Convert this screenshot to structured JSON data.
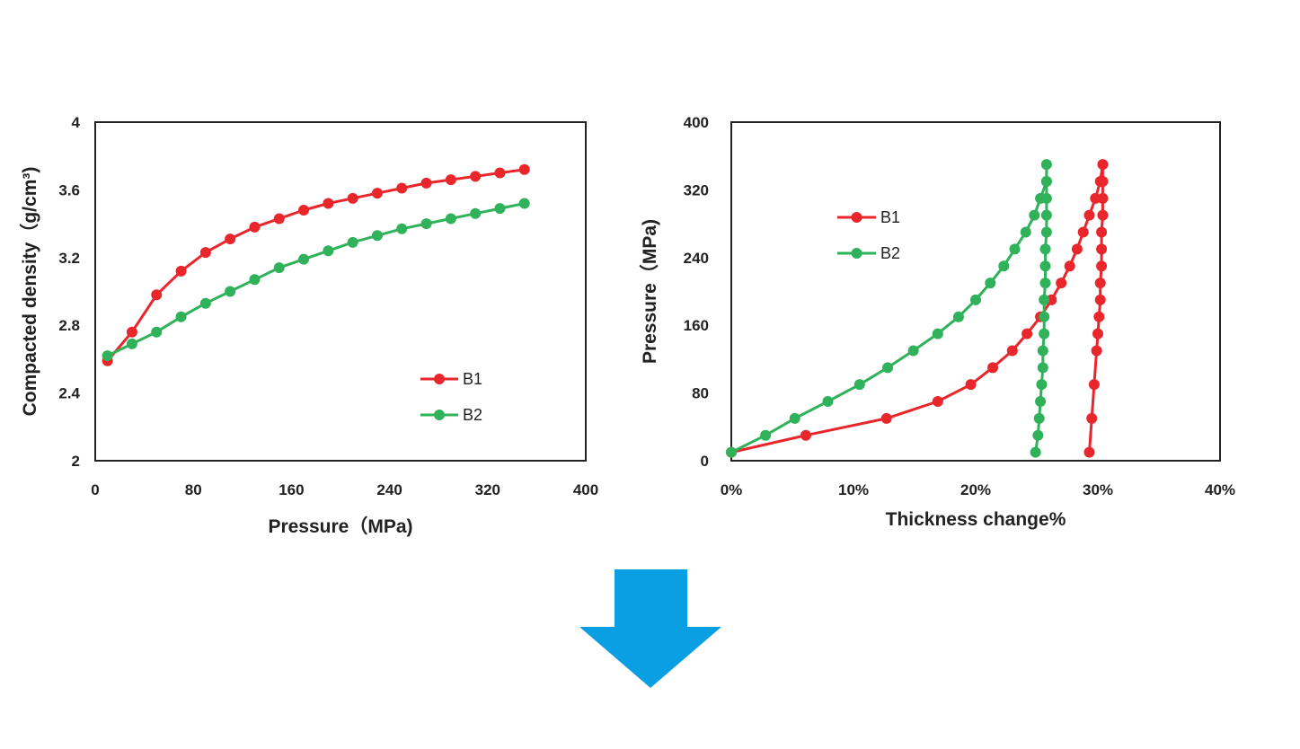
{
  "colors": {
    "B1": "#e8262b",
    "B2": "#2fb25a",
    "arrow": "#0a9fe3",
    "axis": "#222222"
  },
  "arrow": {
    "icon": "arrow-down-icon",
    "direction": "down"
  },
  "chart_data": [
    {
      "type": "line",
      "xlabel": "Pressure（MPa)",
      "ylabel": "Compacted density（g/cm³)",
      "xlim": [
        0,
        400
      ],
      "ylim": [
        2,
        4
      ],
      "x_tick_labels": [
        "0",
        "80",
        "160",
        "240",
        "320",
        "400"
      ],
      "y_tick_labels": [
        "2",
        "2.4",
        "2.8",
        "3.2",
        "3.6",
        "4"
      ],
      "grid": false,
      "legend_position": "lower-right",
      "series": [
        {
          "name": "B1",
          "x": [
            10,
            30,
            50,
            70,
            90,
            110,
            130,
            150,
            170,
            190,
            210,
            230,
            250,
            270,
            290,
            310,
            330,
            350
          ],
          "y": [
            2.59,
            2.76,
            2.98,
            3.12,
            3.23,
            3.31,
            3.38,
            3.43,
            3.48,
            3.52,
            3.55,
            3.58,
            3.61,
            3.64,
            3.66,
            3.68,
            3.7,
            3.72
          ]
        },
        {
          "name": "B2",
          "x": [
            10,
            30,
            50,
            70,
            90,
            110,
            130,
            150,
            170,
            190,
            210,
            230,
            250,
            270,
            290,
            310,
            330,
            350
          ],
          "y": [
            2.62,
            2.69,
            2.76,
            2.85,
            2.93,
            3.0,
            3.07,
            3.14,
            3.19,
            3.24,
            3.29,
            3.33,
            3.37,
            3.4,
            3.43,
            3.46,
            3.49,
            3.52
          ]
        }
      ]
    },
    {
      "type": "line",
      "xlabel": "Thickness change%",
      "ylabel": "Pressure（MPa)",
      "xlim": [
        0,
        40
      ],
      "ylim": [
        0,
        400
      ],
      "x_tick_labels": [
        "0%",
        "10%",
        "20%",
        "30%",
        "40%"
      ],
      "y_tick_labels": [
        "0",
        "80",
        "160",
        "240",
        "320",
        "400"
      ],
      "grid": false,
      "legend_position": "upper-left",
      "series": [
        {
          "name": "B1",
          "x": [
            0,
            6.1,
            12.7,
            16.9,
            19.6,
            21.4,
            23.0,
            24.2,
            25.3,
            26.2,
            27.0,
            27.7,
            28.3,
            28.8,
            29.3,
            29.8,
            30.2,
            30.4,
            30.4,
            30.4,
            30.4,
            30.3,
            30.3,
            30.3,
            30.2,
            30.2,
            30.1,
            30.0,
            29.9,
            29.7,
            29.5,
            29.3
          ],
          "y": [
            10,
            30,
            50,
            70,
            90,
            110,
            130,
            150,
            170,
            190,
            210,
            230,
            250,
            270,
            290,
            310,
            330,
            350,
            330,
            310,
            290,
            270,
            250,
            230,
            210,
            190,
            170,
            150,
            130,
            90,
            50,
            10
          ]
        },
        {
          "name": "B2",
          "x": [
            0,
            2.8,
            5.2,
            7.9,
            10.5,
            12.8,
            14.9,
            16.9,
            18.6,
            20.0,
            21.2,
            22.3,
            23.2,
            24.1,
            24.8,
            25.3,
            25.8,
            25.8,
            25.8,
            25.8,
            25.8,
            25.8,
            25.7,
            25.7,
            25.7,
            25.6,
            25.6,
            25.6,
            25.5,
            25.5,
            25.4,
            25.3,
            25.2,
            25.1,
            24.9
          ],
          "y": [
            10,
            30,
            50,
            70,
            90,
            110,
            130,
            150,
            170,
            190,
            210,
            230,
            250,
            270,
            290,
            310,
            330,
            350,
            330,
            310,
            290,
            270,
            250,
            230,
            210,
            190,
            170,
            150,
            130,
            110,
            90,
            70,
            50,
            30,
            10
          ]
        }
      ]
    }
  ]
}
